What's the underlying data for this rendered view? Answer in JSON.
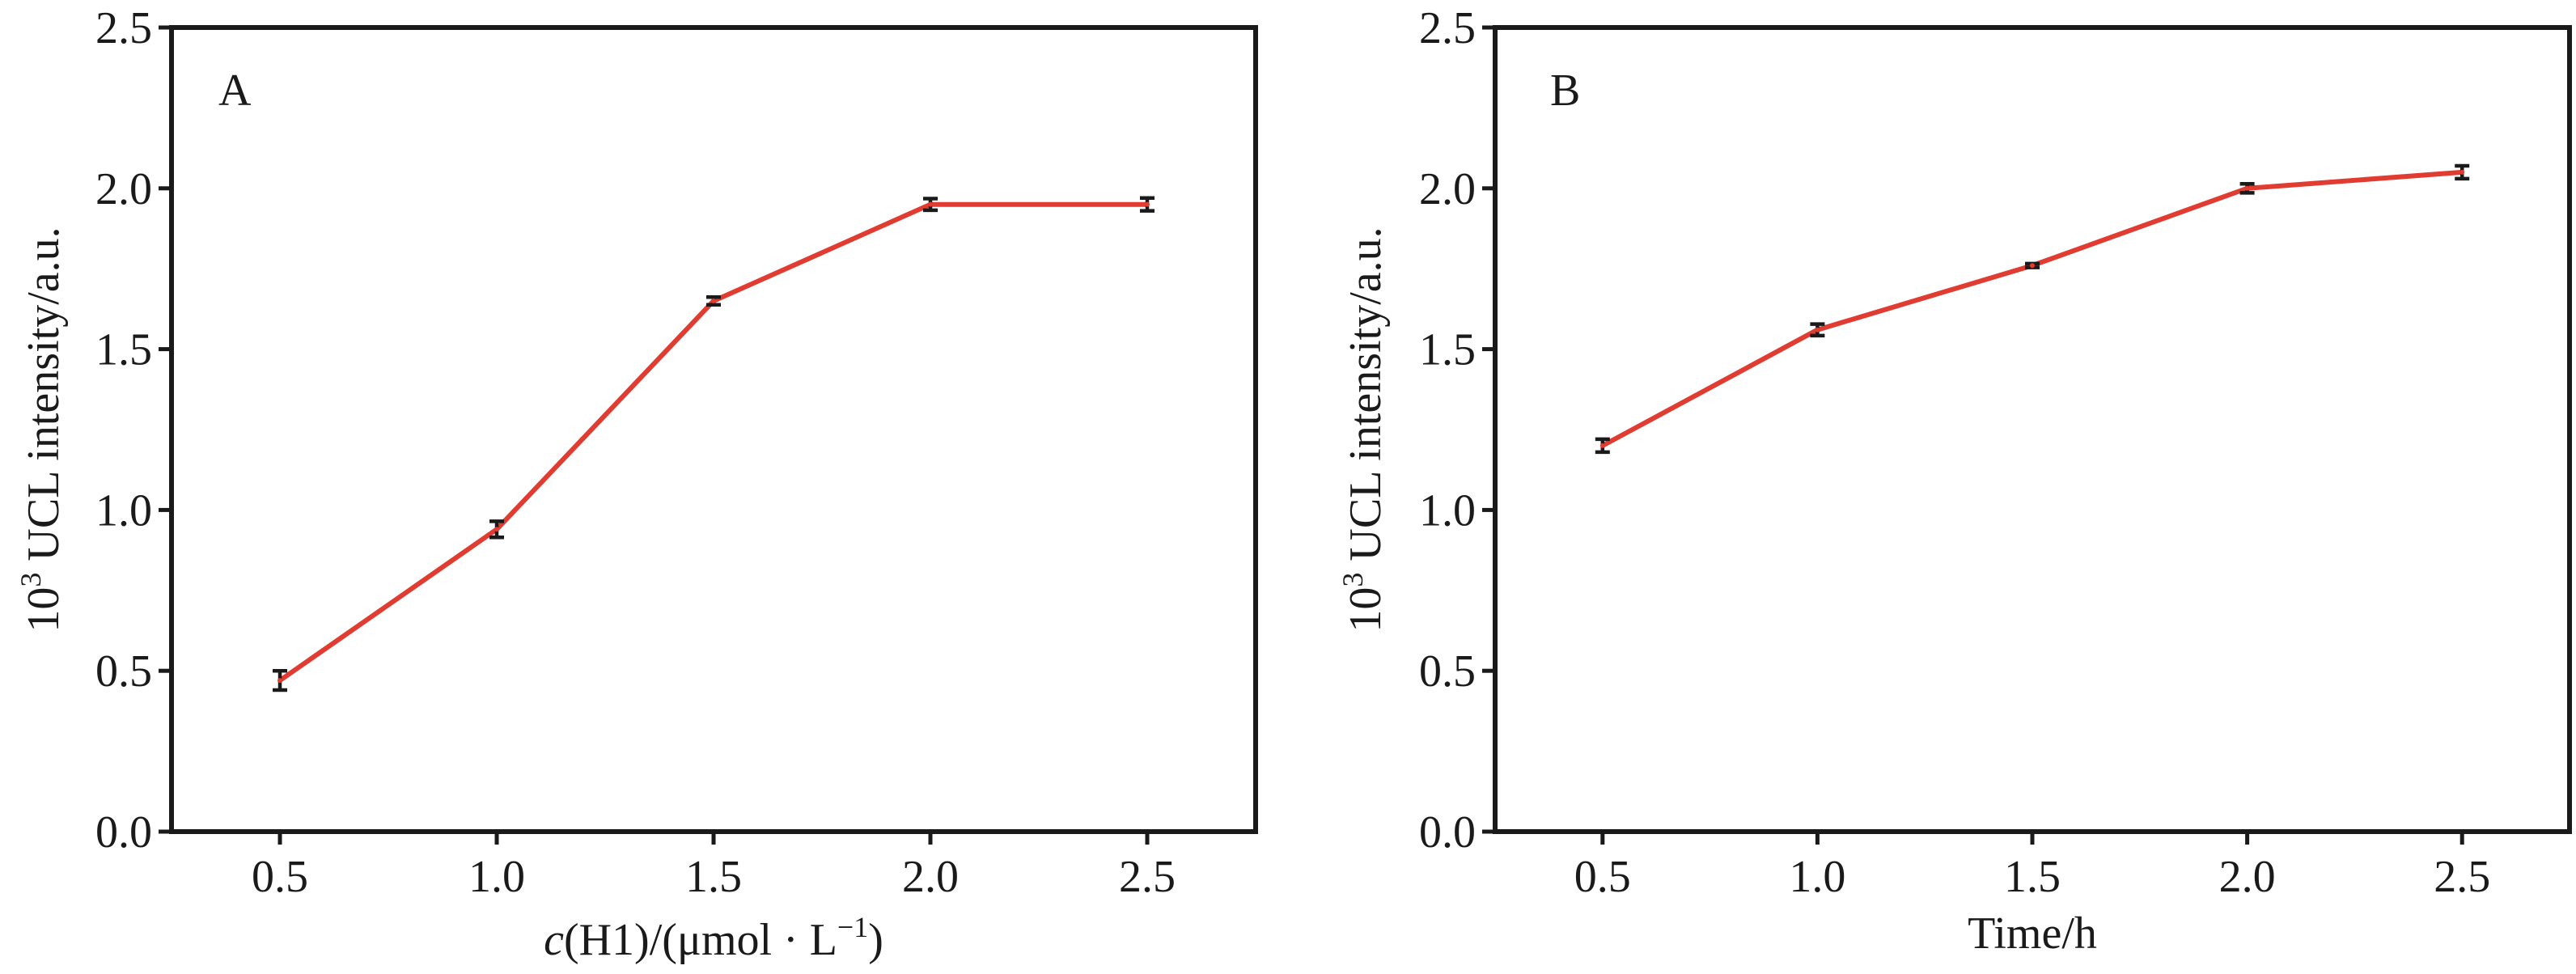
{
  "chart_data": [
    {
      "type": "line",
      "panel_label": "A",
      "xlabel": "c(H1)/(μmol · L⁻¹)",
      "xlabel_parts": {
        "italic": "c",
        "text": "(H1)/(μmol · L",
        "superscript": "−1",
        "close": ")"
      },
      "ylabel": "10³ UCL intensity/a.u.",
      "ylabel_parts": {
        "base": "10",
        "superscript": "3",
        "text": " UCL intensity/a.u."
      },
      "xlim": [
        0.25,
        2.75
      ],
      "ylim": [
        0.0,
        2.5
      ],
      "x_ticks": [
        "0.5",
        "1.0",
        "1.5",
        "2.0",
        "2.5"
      ],
      "y_ticks": [
        "0.0",
        "0.5",
        "1.0",
        "1.5",
        "2.0",
        "2.5"
      ],
      "line_color": "#e03c31",
      "error_bar_color": "#1a1a1a",
      "series": [
        {
          "x": [
            0.5,
            1.0,
            1.5,
            2.0,
            2.5
          ],
          "y": [
            0.47,
            0.94,
            1.65,
            1.95,
            1.95
          ],
          "err": [
            0.03,
            0.025,
            0.012,
            0.018,
            0.02
          ]
        }
      ]
    },
    {
      "type": "line",
      "panel_label": "B",
      "xlabel": "Time/h",
      "ylabel": "10³ UCL intensity/a.u.",
      "ylabel_parts": {
        "base": "10",
        "superscript": "3",
        "text": " UCL intensity/a.u."
      },
      "xlim": [
        0.25,
        2.75
      ],
      "ylim": [
        0.0,
        2.5
      ],
      "x_ticks": [
        "0.5",
        "1.0",
        "1.5",
        "2.0",
        "2.5"
      ],
      "y_ticks": [
        "0.0",
        "0.5",
        "1.0",
        "1.5",
        "2.0",
        "2.5"
      ],
      "line_color": "#e03c31",
      "error_bar_color": "#1a1a1a",
      "series": [
        {
          "x": [
            0.5,
            1.0,
            1.5,
            2.0,
            2.5
          ],
          "y": [
            1.2,
            1.56,
            1.76,
            2.0,
            2.05
          ],
          "err": [
            0.02,
            0.018,
            0.006,
            0.014,
            0.02
          ]
        }
      ]
    }
  ]
}
